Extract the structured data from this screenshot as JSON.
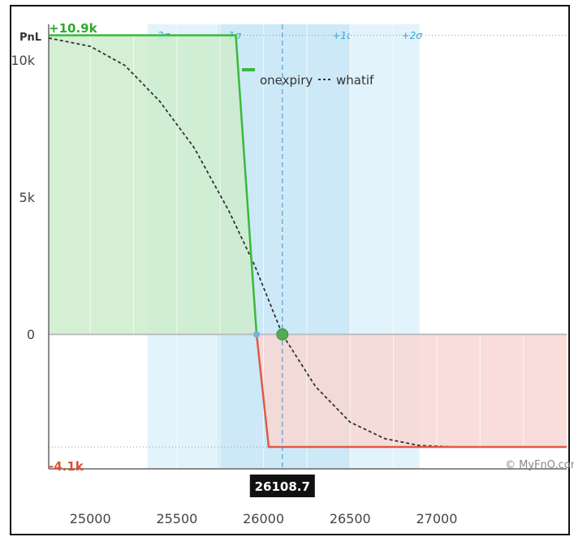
{
  "chart_data": {
    "type": "line",
    "ylabel": "PnL",
    "xlim": [
      24760,
      27750
    ],
    "ylim": [
      -4900,
      11300
    ],
    "x_ticks": [
      {
        "value": 25000,
        "label": "25000"
      },
      {
        "value": 25500,
        "label": "25500"
      },
      {
        "value": 26000,
        "label": "26000"
      },
      {
        "value": 26500,
        "label": "26500"
      },
      {
        "value": 27000,
        "label": "27000"
      }
    ],
    "y_ticks": [
      {
        "value": 0,
        "label": "0"
      },
      {
        "value": 5000,
        "label": "5k"
      },
      {
        "value": 10000,
        "label": "10k"
      }
    ],
    "max_label": "+10.9k",
    "max_value": 10900,
    "min_label": "-4.1k",
    "min_value": -4100,
    "spot": {
      "value": 26108.7,
      "label": "26108.7"
    },
    "sigma_bands": [
      {
        "label": "-2σ",
        "from": 25330,
        "to": 25740,
        "color": "#e3f3fb"
      },
      {
        "label": "-1σ",
        "from": 25740,
        "to": 26108.7,
        "color": "#cde9f7"
      },
      {
        "label": "+1σ",
        "from": 26108.7,
        "to": 26500,
        "color": "#cde9f7"
      },
      {
        "label": "+2σ",
        "from": 26500,
        "to": 26900,
        "color": "#e3f3fb"
      }
    ],
    "series": [
      {
        "name": "onexpiry",
        "color": "#3cb83c",
        "x": [
          24760,
          25840,
          25960,
          26030,
          27750
        ],
        "y": [
          10900,
          10900,
          0,
          -4100,
          -4100
        ]
      },
      {
        "name": "whatif",
        "color": "#333333",
        "x": [
          24760,
          25000,
          25200,
          25400,
          25600,
          25800,
          25950,
          26108.7,
          26300,
          26500,
          26700,
          26900,
          27100,
          27750
        ],
        "y": [
          10800,
          10500,
          9800,
          8500,
          6800,
          4500,
          2500,
          0,
          -1900,
          -3200,
          -3800,
          -4050,
          -4100,
          -4100
        ]
      }
    ],
    "breakeven": 25960,
    "legend_position": "top-center",
    "credit": "© MyFnO.com",
    "colors": {
      "profit_fill": "#cdeccd",
      "loss_fill": "#f8d7d3",
      "loss_line": "#e05a44",
      "zero_line": "#bdbdbd"
    }
  }
}
